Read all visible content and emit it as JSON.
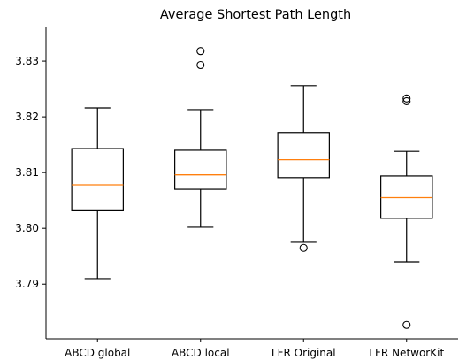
{
  "chart_data": {
    "type": "box",
    "title": "Average Shortest Path Length",
    "xlabel": "",
    "ylabel": "",
    "categories": [
      "ABCD global",
      "ABCD local",
      "LFR Original",
      "LFR NetworKit"
    ],
    "yticks": [
      3.79,
      3.8,
      3.81,
      3.82,
      3.83
    ],
    "ytick_labels": [
      "3.79",
      "3.80",
      "3.81",
      "3.82",
      "3.83"
    ],
    "ylim": [
      3.7802,
      3.8362
    ],
    "grid": false,
    "boxes": [
      {
        "name": "ABCD global",
        "whisker_low": 3.791,
        "q1": 3.8033,
        "median": 3.8078,
        "q3": 3.8143,
        "whisker_high": 3.8216,
        "outliers": []
      },
      {
        "name": "ABCD local",
        "whisker_low": 3.8002,
        "q1": 3.807,
        "median": 3.8096,
        "q3": 3.814,
        "whisker_high": 3.8213,
        "outliers": [
          3.8318,
          3.8293
        ]
      },
      {
        "name": "LFR Original",
        "whisker_low": 3.7975,
        "q1": 3.8091,
        "median": 3.8123,
        "q3": 3.8172,
        "whisker_high": 3.8256,
        "outliers": [
          3.7965
        ]
      },
      {
        "name": "LFR NetworKit",
        "whisker_low": 3.794,
        "q1": 3.8018,
        "median": 3.8055,
        "q3": 3.8094,
        "whisker_high": 3.8138,
        "outliers": [
          3.8233,
          3.8228,
          3.7827
        ]
      }
    ],
    "colors": {
      "box": "#000000",
      "median": "#ff7f0e",
      "outlier": "#000000",
      "axes": "#000000"
    }
  }
}
